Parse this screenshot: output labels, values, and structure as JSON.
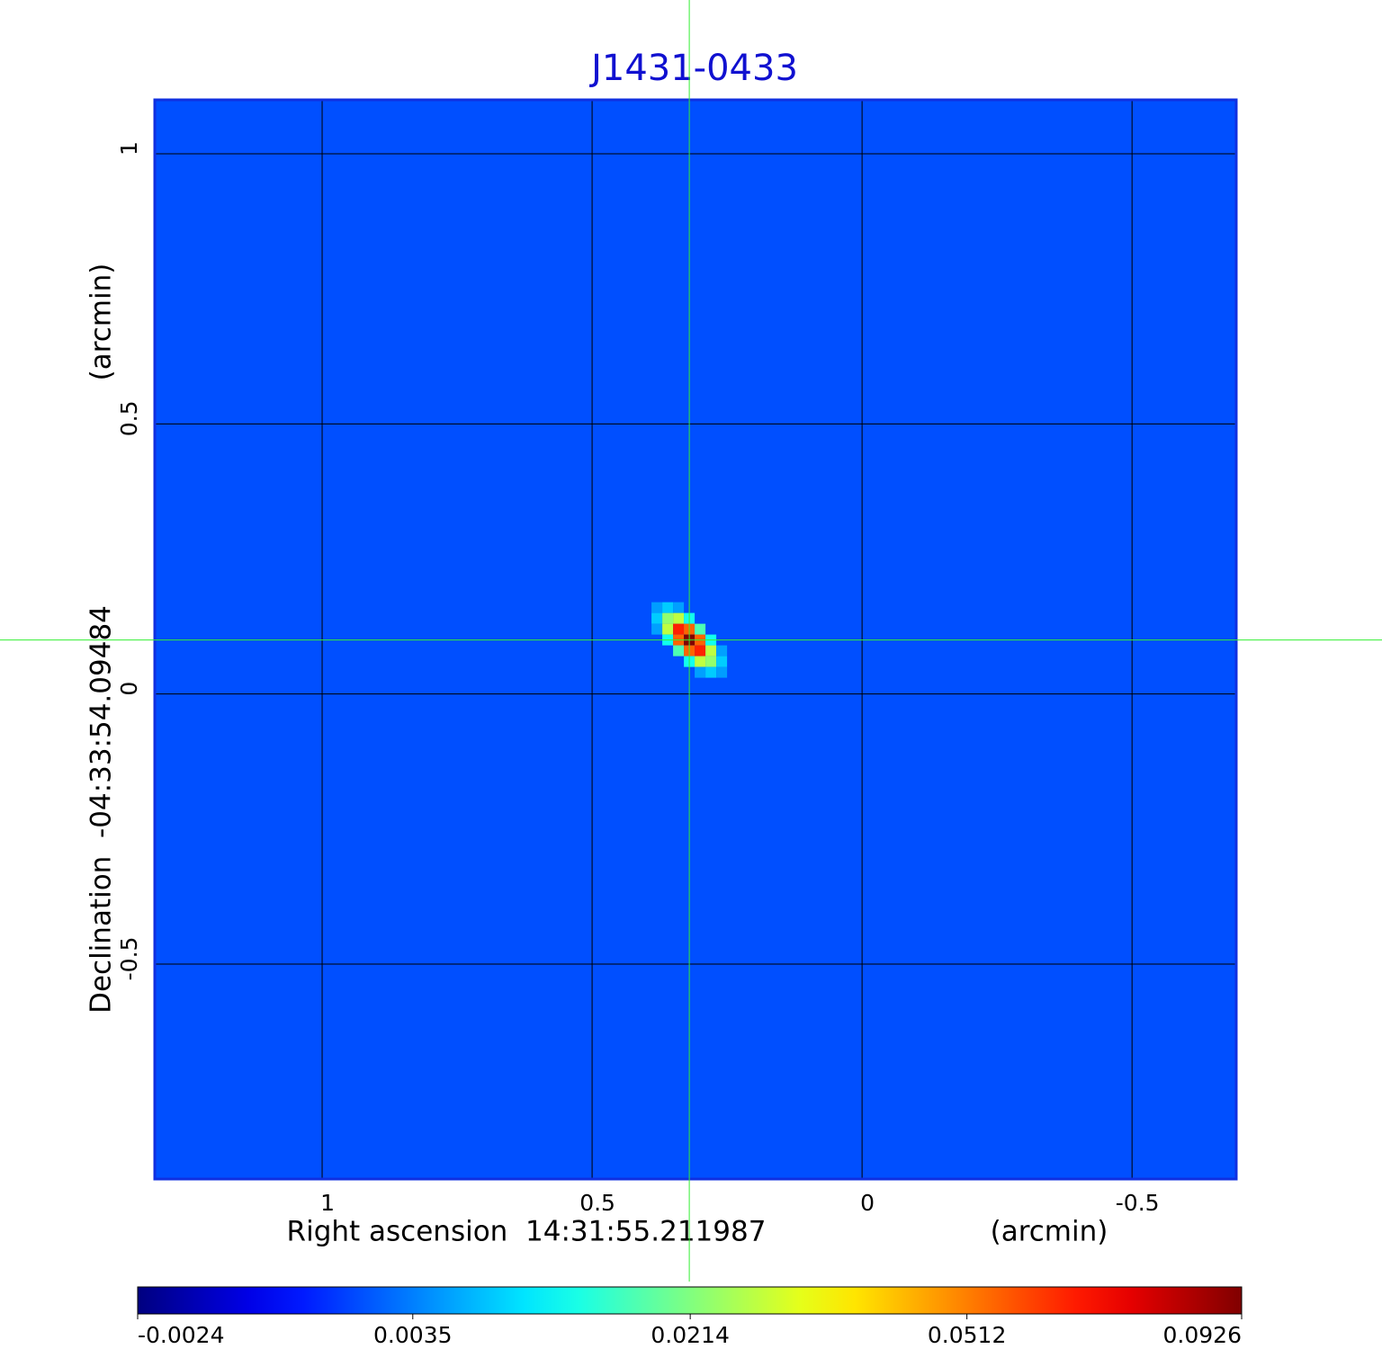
{
  "chart_data": {
    "type": "image",
    "title": "J1431-0433",
    "xlabel": "Right ascension  14:31:55.211987",
    "xunit": "(arcmin)",
    "ylabel": "Declination  -04:33:54.09484",
    "yunit": "(arcmin)",
    "xlim": [
      1.31,
      -0.693
    ],
    "ylim": [
      -0.898,
      1.1
    ],
    "xticks": [
      1.0,
      0.5,
      0.0,
      -0.5
    ],
    "yticks": [
      -0.5,
      0.0,
      0.5,
      1.0
    ],
    "grid": true,
    "background_level": 0.0015,
    "source": {
      "x": 0.32,
      "y": 0.1,
      "peak": 0.0926
    },
    "crosshair": {
      "x": 0.32,
      "y": 0.1,
      "color": "#33ee33"
    },
    "colorbar": {
      "colormap": "jet",
      "scale": "sqrt",
      "clim": [
        -0.0024,
        0.0926
      ],
      "ticks": [
        -0.0024,
        0.0035,
        0.0214,
        0.0512,
        0.0926
      ]
    }
  }
}
